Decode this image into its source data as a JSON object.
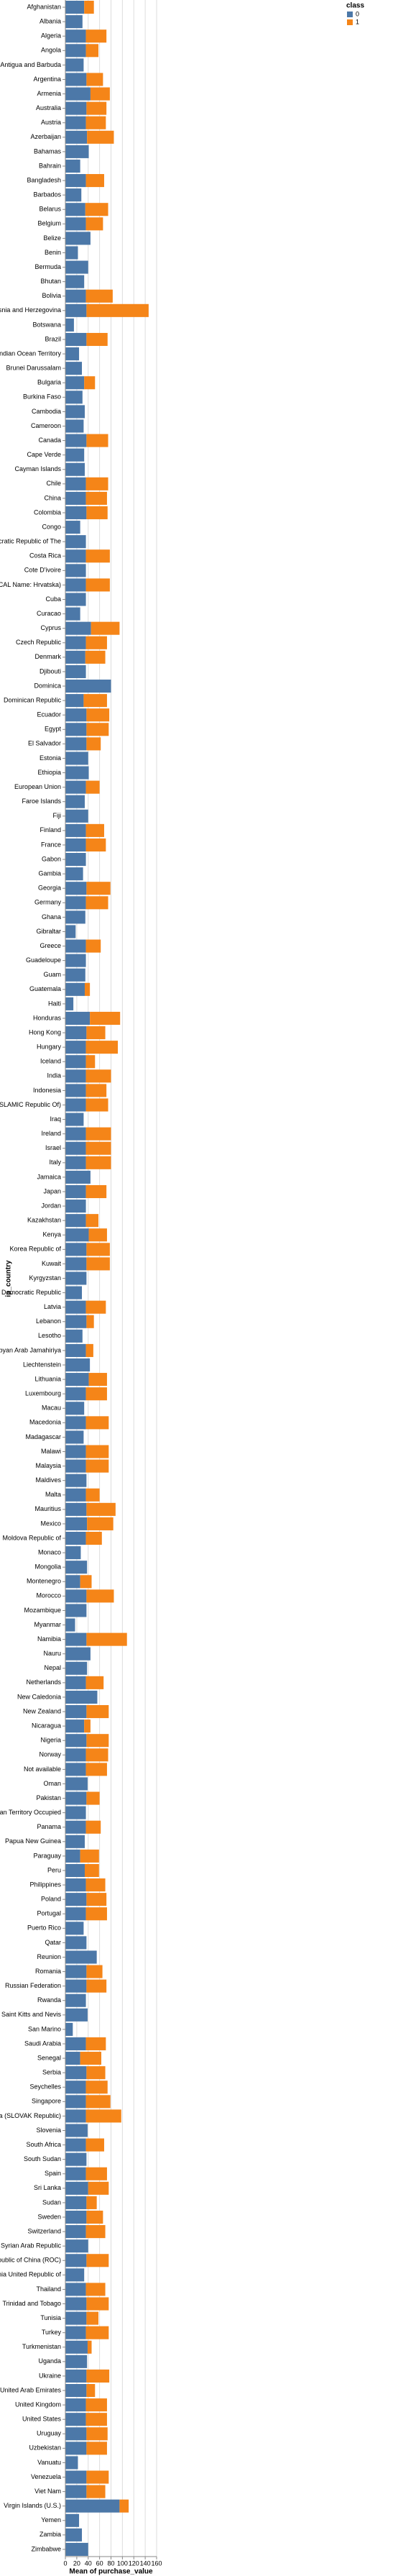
{
  "chart_data": {
    "type": "stacked_barh",
    "x_label": "Mean of purchase_value",
    "y_label": "ip_country",
    "legend_title": "class",
    "categories": [
      "Afghanistan",
      "Albania",
      "Algeria",
      "Angola",
      "Antigua and Barbuda",
      "Argentina",
      "Armenia",
      "Australia",
      "Austria",
      "Azerbaijan",
      "Bahamas",
      "Bahrain",
      "Bangladesh",
      "Barbados",
      "Belarus",
      "Belgium",
      "Belize",
      "Benin",
      "Bermuda",
      "Bhutan",
      "Bolivia",
      "Bosnia and Herzegovina",
      "Botswana",
      "Brazil",
      "British Indian Ocean Territory",
      "Brunei Darussalam",
      "Bulgaria",
      "Burkina Faso",
      "Cambodia",
      "Cameroon",
      "Canada",
      "Cape Verde",
      "Cayman Islands",
      "Chile",
      "China",
      "Colombia",
      "Congo",
      "Congo The Democratic Republic of The",
      "Costa Rica",
      "Cote D'ivoire",
      "Croatia (LOCAL Name: Hrvatska)",
      "Cuba",
      "Curacao",
      "Cyprus",
      "Czech Republic",
      "Denmark",
      "Djibouti",
      "Dominica",
      "Dominican Republic",
      "Ecuador",
      "Egypt",
      "El Salvador",
      "Estonia",
      "Ethiopia",
      "European Union",
      "Faroe Islands",
      "Fiji",
      "Finland",
      "France",
      "Gabon",
      "Gambia",
      "Georgia",
      "Germany",
      "Ghana",
      "Gibraltar",
      "Greece",
      "Guadeloupe",
      "Guam",
      "Guatemala",
      "Haiti",
      "Honduras",
      "Hong Kong",
      "Hungary",
      "Iceland",
      "India",
      "Indonesia",
      "Iran (ISLAMIC Republic Of)",
      "Iraq",
      "Ireland",
      "Israel",
      "Italy",
      "Jamaica",
      "Japan",
      "Jordan",
      "Kazakhstan",
      "Kenya",
      "Korea Republic of",
      "Kuwait",
      "Kyrgyzstan",
      "Lao People's Democratic Republic",
      "Latvia",
      "Lebanon",
      "Lesotho",
      "Libyan Arab Jamahiriya",
      "Liechtenstein",
      "Lithuania",
      "Luxembourg",
      "Macau",
      "Macedonia",
      "Madagascar",
      "Malawi",
      "Malaysia",
      "Maldives",
      "Malta",
      "Mauritius",
      "Mexico",
      "Moldova Republic of",
      "Monaco",
      "Mongolia",
      "Montenegro",
      "Morocco",
      "Mozambique",
      "Myanmar",
      "Namibia",
      "Nauru",
      "Nepal",
      "Netherlands",
      "New Caledonia",
      "New Zealand",
      "Nicaragua",
      "Nigeria",
      "Norway",
      "Not available",
      "Oman",
      "Pakistan",
      "Palestinian Territory Occupied",
      "Panama",
      "Papua New Guinea",
      "Paraguay",
      "Peru",
      "Philippines",
      "Poland",
      "Portugal",
      "Puerto Rico",
      "Qatar",
      "Reunion",
      "Romania",
      "Russian Federation",
      "Rwanda",
      "Saint Kitts and Nevis",
      "San Marino",
      "Saudi Arabia",
      "Senegal",
      "Serbia",
      "Seychelles",
      "Singapore",
      "Slovakia (SLOVAK Republic)",
      "Slovenia",
      "South Africa",
      "South Sudan",
      "Spain",
      "Sri Lanka",
      "Sudan",
      "Sweden",
      "Switzerland",
      "Syrian Arab Republic",
      "Taiwan; Republic of China (ROC)",
      "Tanzania United Republic of",
      "Thailand",
      "Trinidad and Tobago",
      "Tunisia",
      "Turkey",
      "Turkmenistan",
      "Uganda",
      "Ukraine",
      "United Arab Emirates",
      "United Kingdom",
      "United States",
      "Uruguay",
      "Uzbekistan",
      "Vanuatu",
      "Venezuela",
      "Viet Nam",
      "Virgin Islands (U.S.)",
      "Yemen",
      "Zambia",
      "Zimbabwe"
    ],
    "series": [
      {
        "name": "0",
        "color": "#4c78a8",
        "values": [
          33,
          30,
          36,
          36,
          32,
          37,
          44,
          37,
          36,
          38,
          41,
          26,
          36,
          28,
          35,
          36,
          44,
          22,
          40,
          33,
          36,
          37,
          15,
          37,
          24,
          29,
          33,
          30,
          34,
          32,
          37,
          33,
          34,
          36,
          36,
          37,
          26,
          36,
          36,
          36,
          36,
          36,
          26,
          45,
          36,
          35,
          36,
          80,
          32,
          37,
          37,
          37,
          40,
          41,
          36,
          34,
          40,
          36,
          36,
          36,
          31,
          37,
          36,
          35,
          18,
          36,
          36,
          35,
          34,
          14,
          43,
          37,
          36,
          36,
          36,
          36,
          36,
          32,
          36,
          36,
          36,
          44,
          36,
          36,
          36,
          41,
          37,
          37,
          37,
          29,
          36,
          37,
          30,
          36,
          43,
          41,
          36,
          33,
          36,
          32,
          36,
          36,
          37,
          36,
          37,
          38,
          36,
          27,
          38,
          26,
          37,
          37,
          17,
          37,
          44,
          38,
          36,
          56,
          37,
          33,
          37,
          36,
          36,
          39,
          37,
          36,
          36,
          34,
          26,
          34,
          36,
          37,
          36,
          32,
          37,
          55,
          37,
          37,
          36,
          39,
          13,
          36,
          26,
          37,
          36,
          36,
          36,
          39,
          36,
          37,
          36,
          40,
          37,
          37,
          36,
          40,
          37,
          33,
          36,
          37,
          37,
          36,
          39,
          38,
          37,
          37,
          36,
          36,
          37,
          37,
          22,
          37,
          37,
          95,
          24,
          29,
          40
        ]
      },
      {
        "name": "1",
        "color": "#f58518",
        "values": [
          17,
          null,
          36,
          22,
          null,
          29,
          34,
          35,
          35,
          47,
          null,
          null,
          32,
          null,
          40,
          30,
          null,
          null,
          null,
          null,
          47,
          109,
          null,
          37,
          null,
          null,
          19,
          null,
          null,
          null,
          38,
          null,
          null,
          39,
          37,
          37,
          null,
          null,
          42,
          null,
          42,
          null,
          null,
          50,
          37,
          35,
          null,
          null,
          41,
          40,
          39,
          25,
          null,
          null,
          24,
          null,
          null,
          32,
          35,
          null,
          null,
          42,
          39,
          null,
          null,
          26,
          null,
          null,
          9,
          null,
          53,
          33,
          56,
          16,
          44,
          36,
          39,
          null,
          44,
          44,
          44,
          null,
          36,
          null,
          22,
          32,
          41,
          41,
          null,
          null,
          35,
          13,
          null,
          13,
          null,
          32,
          37,
          null,
          40,
          null,
          40,
          40,
          null,
          24,
          51,
          46,
          28,
          null,
          null,
          20,
          48,
          null,
          null,
          71,
          null,
          null,
          31,
          null,
          39,
          11,
          39,
          39,
          37,
          null,
          23,
          null,
          26,
          null,
          33,
          25,
          34,
          35,
          37,
          null,
          null,
          null,
          28,
          35,
          null,
          null,
          null,
          35,
          37,
          33,
          38,
          43,
          62,
          null,
          32,
          null,
          37,
          36,
          18,
          29,
          34,
          null,
          39,
          null,
          34,
          39,
          21,
          40,
          7,
          null,
          40,
          15,
          37,
          37,
          37,
          36,
          null,
          39,
          33,
          16,
          null,
          null,
          null
        ]
      }
    ],
    "xlim": [
      0,
      160
    ],
    "xticks": [
      0,
      20,
      40,
      60,
      80,
      100,
      120,
      140,
      160
    ],
    "grid": true
  }
}
